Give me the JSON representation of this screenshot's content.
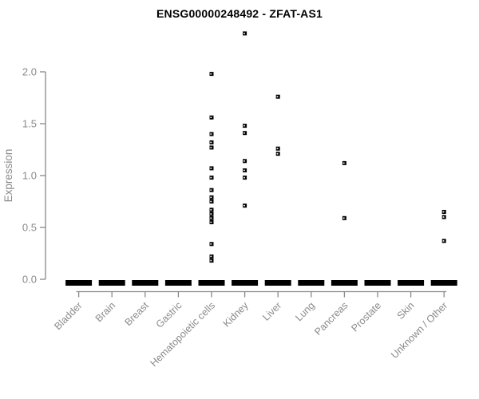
{
  "chart_data": {
    "type": "scatter",
    "title": "ENSG00000248492 - ZFAT-AS1",
    "ylabel": "Expression",
    "xlabel": "",
    "ylim": [
      0.0,
      2.4
    ],
    "yticks": [
      0.0,
      0.5,
      1.0,
      1.5,
      2.0
    ],
    "grid": false,
    "legend": "none",
    "marker": "small-black-square",
    "categories": [
      "Bladder",
      "Brain",
      "Breast",
      "Gastric",
      "Hematopoietic cells",
      "Kidney",
      "Liver",
      "Lung",
      "Pancreas",
      "Prostate",
      "Skin",
      "Unknown / Other"
    ],
    "groups": [
      {
        "label": "Bladder",
        "zero_cluster": true,
        "values": []
      },
      {
        "label": "Brain",
        "zero_cluster": true,
        "values": []
      },
      {
        "label": "Breast",
        "zero_cluster": true,
        "values": []
      },
      {
        "label": "Gastric",
        "zero_cluster": true,
        "values": []
      },
      {
        "label": "Hematopoietic cells",
        "zero_cluster": true,
        "values": [
          1.98,
          1.56,
          1.4,
          1.32,
          1.27,
          1.07,
          0.98,
          0.86,
          0.79,
          0.75,
          0.67,
          0.63,
          0.59,
          0.55,
          0.34,
          0.22,
          0.18
        ]
      },
      {
        "label": "Kidney",
        "zero_cluster": true,
        "values": [
          2.37,
          1.48,
          1.41,
          1.14,
          1.05,
          0.98,
          0.71
        ]
      },
      {
        "label": "Liver",
        "zero_cluster": true,
        "values": [
          1.76,
          1.26,
          1.21
        ]
      },
      {
        "label": "Lung",
        "zero_cluster": true,
        "values": []
      },
      {
        "label": "Pancreas",
        "zero_cluster": true,
        "values": [
          1.12,
          0.59
        ]
      },
      {
        "label": "Prostate",
        "zero_cluster": true,
        "values": []
      },
      {
        "label": "Skin",
        "zero_cluster": true,
        "values": []
      },
      {
        "label": "Unknown / Other",
        "zero_cluster": true,
        "values": [
          0.65,
          0.6,
          0.37
        ]
      }
    ],
    "colors": {
      "points": "#000000",
      "axis": "#888888",
      "tick_labels": "#8a8a8a",
      "title": "#000000",
      "background": "#ffffff"
    }
  }
}
